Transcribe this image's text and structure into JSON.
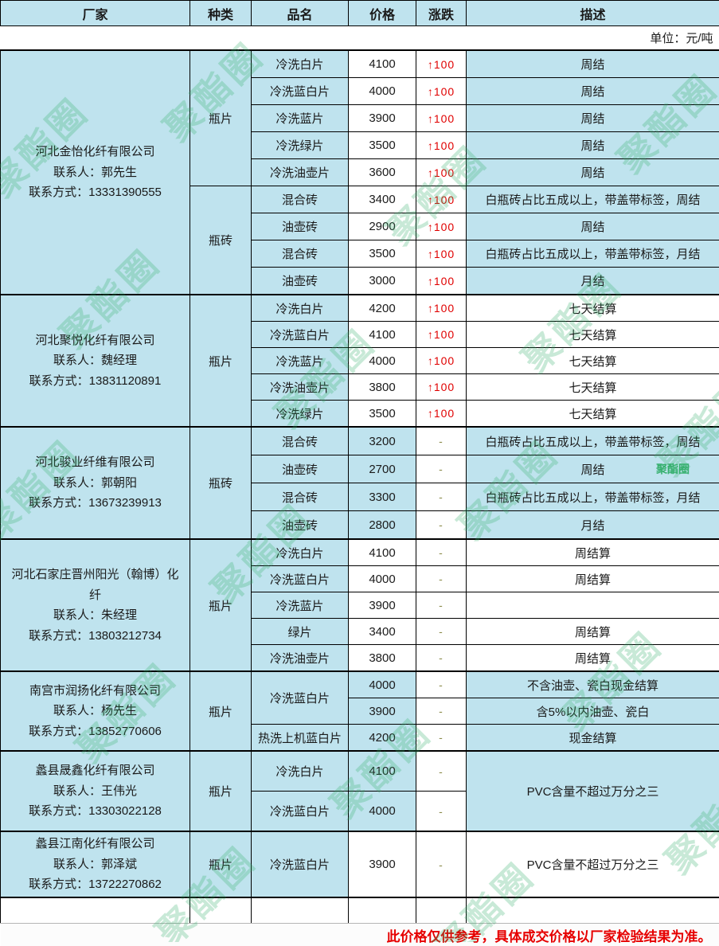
{
  "header": {
    "columns": [
      "厂家",
      "种类",
      "品名",
      "价格",
      "涨跌",
      "描述"
    ]
  },
  "unit_note": "单位：元/吨",
  "footer_note": "此价格仅供参考，具体成交价格以厂家检验结果为准。",
  "watermark": {
    "text": "聚酯圈"
  },
  "colors": {
    "cell_blue": "#bfe3ee",
    "up_red": "#e00000",
    "dash_olive": "#8b8b4a",
    "footer_red": "#e60000",
    "watermark_green": "#2fae68"
  },
  "companies": [
    {
      "name": "河北金怡化纤有限公司",
      "contact": "联系人：郭先生",
      "phone": "联系方式：13331390555",
      "shade": {
        "price": false,
        "desc": true
      },
      "groups": [
        {
          "type": "瓶片",
          "rows": [
            {
              "product": "冷洗白片",
              "price": "4100",
              "change": "↑100",
              "up": true,
              "desc": "周结"
            },
            {
              "product": "冷洗蓝白片",
              "price": "4000",
              "change": "↑100",
              "up": true,
              "desc": "周结"
            },
            {
              "product": "冷洗蓝片",
              "price": "3900",
              "change": "↑100",
              "up": true,
              "desc": "周结"
            },
            {
              "product": "冷洗绿片",
              "price": "3500",
              "change": "↑100",
              "up": true,
              "desc": "周结"
            },
            {
              "product": "冷洗油壶片",
              "price": "3600",
              "change": "↑100",
              "up": true,
              "desc": "周结"
            }
          ]
        },
        {
          "type": "瓶砖",
          "rows": [
            {
              "product": "混合砖",
              "price": "3400",
              "change": "↑100",
              "up": true,
              "desc": "白瓶砖占比五成以上，带盖带标签，周结"
            },
            {
              "product": "油壶砖",
              "price": "2900",
              "change": "↑100",
              "up": true,
              "desc": "周结"
            },
            {
              "product": "混合砖",
              "price": "3500",
              "change": "↑100",
              "up": true,
              "desc": "白瓶砖占比五成以上，带盖带标签，月结"
            },
            {
              "product": "油壶砖",
              "price": "3000",
              "change": "↑100",
              "up": true,
              "desc": "月结"
            }
          ]
        }
      ]
    },
    {
      "name": "河北聚悦化纤有限公司",
      "contact": "联系人：魏经理",
      "phone": "联系方式：13831120891",
      "shade": {
        "price": false,
        "desc": false
      },
      "groups": [
        {
          "type": "瓶片",
          "rows": [
            {
              "product": "冷洗白片",
              "price": "4200",
              "change": "↑100",
              "up": true,
              "desc": "七天结算"
            },
            {
              "product": "冷洗蓝白片",
              "price": "4100",
              "change": "↑100",
              "up": true,
              "desc": "七天结算"
            },
            {
              "product": "冷洗蓝片",
              "price": "4000",
              "change": "↑100",
              "up": true,
              "desc": "七天结算"
            },
            {
              "product": "冷洗油壶片",
              "price": "3800",
              "change": "↑100",
              "up": true,
              "desc": "七天结算"
            },
            {
              "product": "冷洗绿片",
              "price": "3500",
              "change": "↑100",
              "up": true,
              "desc": "七天结算"
            }
          ]
        }
      ]
    },
    {
      "name": "河北骏业纤维有限公司",
      "contact": "联系人：郭朝阳",
      "phone": "联系方式：13673239913",
      "shade": {
        "price": true,
        "desc": true
      },
      "groups": [
        {
          "type": "瓶砖",
          "rows": [
            {
              "product": "混合砖",
              "price": "3200",
              "change": "-",
              "up": false,
              "desc": "白瓶砖占比五成以上，带盖带标签，周结"
            },
            {
              "product": "油壶砖",
              "price": "2700",
              "change": "-",
              "up": false,
              "desc": "周结"
            },
            {
              "product": "混合砖",
              "price": "3300",
              "change": "-",
              "up": false,
              "desc": "白瓶砖占比五成以上，带盖带标签，月结"
            },
            {
              "product": "油壶砖",
              "price": "2800",
              "change": "-",
              "up": false,
              "desc": "月结"
            }
          ]
        }
      ]
    },
    {
      "name": "河北石家庄晋州阳光（翰博）化纤",
      "contact": "联系人：朱经理",
      "phone": "联系方式：13803212734",
      "shade": {
        "price": false,
        "desc": false
      },
      "groups": [
        {
          "type": "瓶片",
          "rows": [
            {
              "product": "冷洗白片",
              "price": "4100",
              "change": "-",
              "up": false,
              "desc": "周结算"
            },
            {
              "product": "冷洗蓝白片",
              "price": "4000",
              "change": "-",
              "up": false,
              "desc": "周结算"
            },
            {
              "product": "冷洗蓝片",
              "price": "3900",
              "change": "-",
              "up": false,
              "desc": ""
            },
            {
              "product": "绿片",
              "price": "3400",
              "change": "-",
              "up": false,
              "desc": "周结算"
            },
            {
              "product": "冷洗油壶片",
              "price": "3800",
              "change": "-",
              "up": false,
              "desc": "周结算"
            }
          ]
        }
      ]
    },
    {
      "name": "南宫市润扬化纤有限公司",
      "contact": "联系人：杨先生",
      "phone": "联系方式：13852770606",
      "shade": {
        "price": true,
        "desc": true
      },
      "groups": [
        {
          "type": "瓶片",
          "rows": [
            {
              "product": "冷洗蓝白片",
              "pspan": 2,
              "price": "4000",
              "change": "-",
              "up": false,
              "desc": "不含油壶、瓷白现金结算"
            },
            {
              "product": null,
              "price": "3900",
              "change": "-",
              "up": false,
              "desc": "含5%以内油壶、瓷白"
            },
            {
              "product": "热洗上机蓝白片",
              "price": "4200",
              "change": "-",
              "up": false,
              "desc": "现金结算"
            }
          ]
        }
      ]
    },
    {
      "name": "蠡县晟鑫化纤有限公司",
      "contact": "联系人：王伟光",
      "phone": "联系方式：13303022128",
      "shade": {
        "price": true,
        "desc": true
      },
      "groups": [
        {
          "type": "瓶片",
          "rows": [
            {
              "product": "冷洗白片",
              "price": "4100",
              "change": "-",
              "up": false,
              "desc": "PVC含量不超过万分之三",
              "dspan": 2
            },
            {
              "product": "冷洗蓝白片",
              "price": "4000",
              "change": "-",
              "up": false,
              "desc": null
            }
          ]
        }
      ]
    },
    {
      "name": "蠡县江南化纤有限公司",
      "contact": "联系人：郭泽斌",
      "phone": "联系方式：13722270862",
      "shade": {
        "price": false,
        "desc": false
      },
      "groups": [
        {
          "type": "瓶片",
          "rows": [
            {
              "product": "冷洗蓝白片",
              "price": "3900",
              "change": "-",
              "up": false,
              "desc": "PVC含量不超过万分之三"
            }
          ]
        }
      ]
    }
  ]
}
